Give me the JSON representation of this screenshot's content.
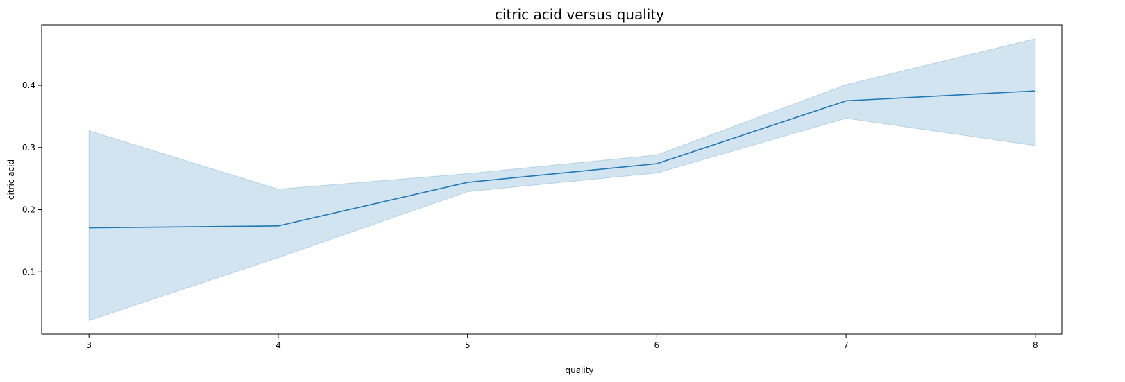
{
  "chart_data": {
    "type": "line",
    "title": "citric acid versus quality",
    "xlabel": "quality",
    "ylabel": "citric acid",
    "x": [
      3,
      4,
      5,
      6,
      7,
      8
    ],
    "x_ticks": [
      "3",
      "4",
      "5",
      "6",
      "7",
      "8"
    ],
    "y_ticks": [
      "0.1",
      "0.2",
      "0.3",
      "0.4"
    ],
    "y_tick_values": [
      0.1,
      0.2,
      0.3,
      0.4
    ],
    "xlim": [
      2.75,
      8.14
    ],
    "ylim": [
      0.0,
      0.497
    ],
    "grid": false,
    "series": [
      {
        "values": [
          0.171,
          0.174,
          0.244,
          0.274,
          0.375,
          0.391
        ],
        "ci_lower": [
          0.022,
          0.123,
          0.229,
          0.259,
          0.347,
          0.303
        ],
        "ci_upper": [
          0.327,
          0.233,
          0.258,
          0.288,
          0.401,
          0.475
        ],
        "color": "#1f77b4",
        "band_color": "#1f77b4"
      }
    ]
  }
}
